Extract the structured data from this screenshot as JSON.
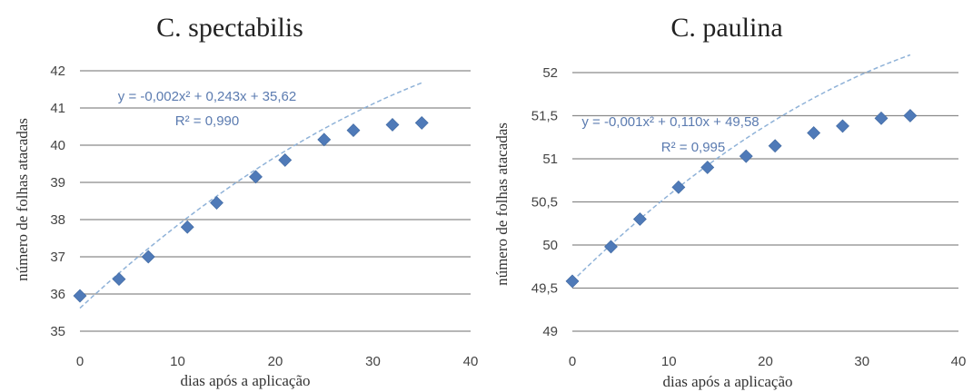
{
  "chart_data": [
    {
      "type": "scatter",
      "title": "C. spectabilis",
      "xlabel": "dias após a aplicação",
      "ylabel": "número de folhas atacadas",
      "xlim": [
        0,
        40
      ],
      "ylim": [
        35,
        42
      ],
      "xticks": [
        0,
        10,
        20,
        30,
        40
      ],
      "yticks": [
        35,
        36,
        37,
        38,
        39,
        40,
        41,
        42
      ],
      "xtick_labels": [
        "0",
        "10",
        "20",
        "30",
        "40"
      ],
      "ytick_labels": [
        "35",
        "36",
        "37",
        "38",
        "39",
        "40",
        "41",
        "42"
      ],
      "grid": true,
      "legend": "none",
      "series": [
        {
          "x": [
            0,
            4,
            7,
            11,
            14,
            18,
            21,
            25,
            28,
            32,
            35
          ],
          "y": [
            35.95,
            36.4,
            37.0,
            37.8,
            38.45,
            39.15,
            39.6,
            40.15,
            40.4,
            40.55,
            40.6
          ]
        }
      ],
      "trendline": {
        "type": "polynomial",
        "coefficients": [
          -0.002,
          0.243,
          35.62
        ],
        "equation": "y = -0,002x² + 0,243x + 35,62",
        "r2": "R² = 0,990"
      },
      "marker_color": "#4f7ab8",
      "trend_color": "#8fb2d8"
    },
    {
      "type": "scatter",
      "title": "C. paulina",
      "xlabel": "dias após a aplicação",
      "ylabel": "número de folhas atacadas",
      "xlim": [
        0,
        40
      ],
      "ylim": [
        49,
        52
      ],
      "xticks": [
        0,
        10,
        20,
        30,
        40
      ],
      "yticks": [
        49,
        49.5,
        50,
        50.5,
        51,
        51.5,
        52
      ],
      "xtick_labels": [
        "0",
        "10",
        "20",
        "30",
        "40"
      ],
      "ytick_labels": [
        "49",
        "49,5",
        "50",
        "50,5",
        "51",
        "51,5",
        "52"
      ],
      "grid": true,
      "legend": "none",
      "series": [
        {
          "x": [
            0,
            4,
            7,
            11,
            14,
            18,
            21,
            25,
            28,
            32,
            35
          ],
          "y": [
            49.58,
            49.98,
            50.3,
            50.67,
            50.9,
            51.03,
            51.15,
            51.3,
            51.38,
            51.47,
            51.5
          ]
        }
      ],
      "trendline": {
        "type": "polynomial",
        "coefficients": [
          -0.001,
          0.11,
          49.58
        ],
        "equation": "y = -0,001x² + 0,110x + 49,58",
        "r2": "R² = 0,995"
      },
      "marker_color": "#4f7ab8",
      "trend_color": "#8fb2d8"
    }
  ]
}
